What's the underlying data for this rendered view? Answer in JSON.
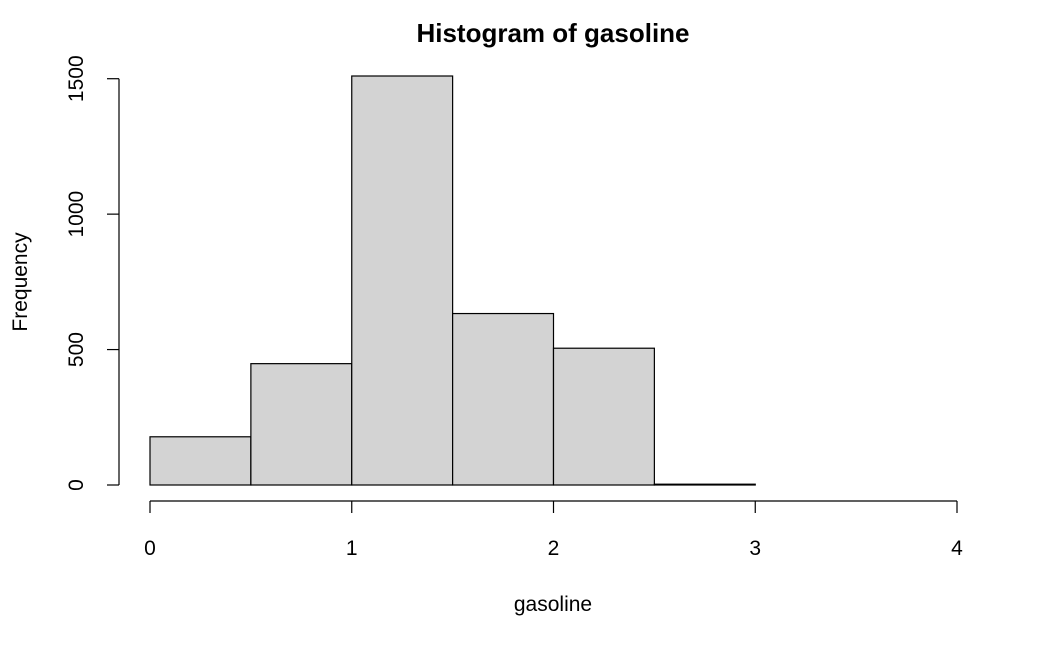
{
  "chart_data": {
    "type": "bar",
    "title": "Histogram of gasoline",
    "xlabel": "gasoline",
    "ylabel": "Frequency",
    "bins": [
      {
        "start": 0,
        "end": 0.5,
        "count": 178
      },
      {
        "start": 0.5,
        "end": 1,
        "count": 448
      },
      {
        "start": 1,
        "end": 1.5,
        "count": 1510
      },
      {
        "start": 1.5,
        "end": 2,
        "count": 633
      },
      {
        "start": 2,
        "end": 2.5,
        "count": 505
      },
      {
        "start": 2.5,
        "end": 3,
        "count": 3
      },
      {
        "start": 3,
        "end": 3.5,
        "count": 0
      },
      {
        "start": 3.5,
        "end": 4,
        "count": 0
      }
    ],
    "xlim": [
      0,
      4
    ],
    "ylim": [
      0,
      1510
    ],
    "x_ticks": [
      0,
      1,
      2,
      3,
      4
    ],
    "x_tick_labels": [
      "0",
      "1",
      "2",
      "3",
      "4"
    ],
    "y_ticks": [
      0,
      500,
      1000,
      1500
    ],
    "y_tick_labels": [
      "0",
      "500",
      "1000",
      "1500"
    ],
    "grid": false,
    "bar_color": "#d3d3d3",
    "edge_color": "#000000"
  }
}
